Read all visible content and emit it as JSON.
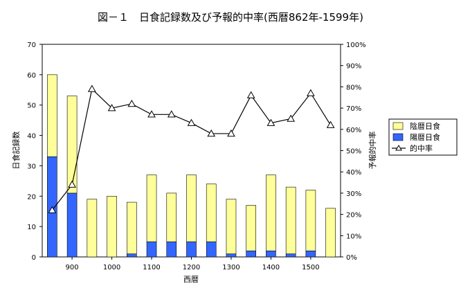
{
  "chart_data": {
    "type": "bar",
    "title": "図－１　日食記録数及び予報的中率(西暦862年-1599年)",
    "xlabel": "西暦",
    "ylabel": "日食記録数",
    "y2label": "予報的中率",
    "x": [
      850,
      900,
      950,
      1000,
      1050,
      1100,
      1150,
      1200,
      1250,
      1300,
      1350,
      1400,
      1450,
      1500,
      1550
    ],
    "x_ticks": [
      900,
      1000,
      1100,
      1200,
      1300,
      1400,
      1500
    ],
    "x_tick_labels": [
      "900",
      "1000",
      "1100",
      "1200",
      "1300",
      "1400",
      "1500"
    ],
    "xlim": [
      825,
      1575
    ],
    "ylim": [
      0,
      70
    ],
    "y_ticks": [
      0,
      10,
      20,
      30,
      40,
      50,
      60,
      70
    ],
    "y_tick_labels": [
      "0",
      "10",
      "20",
      "30",
      "40",
      "50",
      "60",
      "70"
    ],
    "y2lim": [
      0,
      100
    ],
    "y2_ticks": [
      0,
      10,
      20,
      30,
      40,
      50,
      60,
      70,
      80,
      90,
      100
    ],
    "y2_tick_labels": [
      "0%",
      "10%",
      "20%",
      "30%",
      "40%",
      "50%",
      "60%",
      "70%",
      "80%",
      "90%",
      "100%"
    ],
    "grid": false,
    "legend_position": "right",
    "series": [
      {
        "name": "陰暦日食",
        "type": "bar",
        "stack": "total",
        "axis": "left",
        "color": "#ffff99",
        "values": [
          27,
          32,
          19,
          20,
          17,
          22,
          16,
          22,
          19,
          18,
          15,
          25,
          22,
          20,
          16
        ]
      },
      {
        "name": "陽暦日食",
        "type": "bar",
        "stack": "total",
        "axis": "left",
        "color": "#3366ff",
        "values": [
          33,
          21,
          0,
          0,
          1,
          5,
          5,
          5,
          5,
          1,
          2,
          2,
          1,
          2,
          0
        ]
      },
      {
        "name": "的中率",
        "type": "line",
        "axis": "right",
        "marker": "triangle",
        "color": "#000000",
        "values": [
          22,
          34,
          79,
          70,
          72,
          67,
          67,
          63,
          58,
          58,
          76,
          63,
          65,
          77,
          62
        ]
      }
    ]
  }
}
